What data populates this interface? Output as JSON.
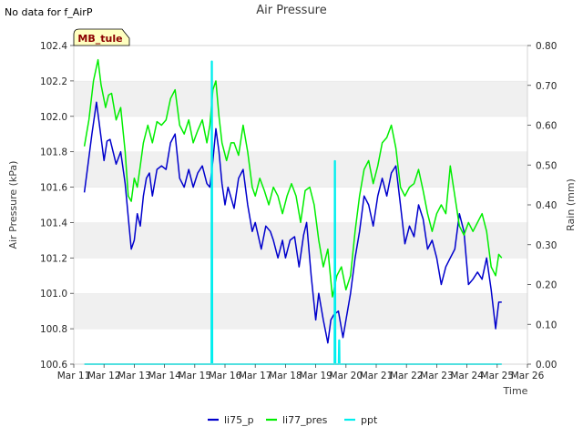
{
  "header": {
    "note": "No data for f_AirP",
    "title": "Air Pressure",
    "site_label": "MB_tule"
  },
  "chart_data": {
    "type": "line",
    "title": "Air Pressure",
    "xlabel": "Time",
    "ylabel": "Air Pressure (kPa)",
    "y2label": "Rain (mm)",
    "x_range": [
      11,
      26
    ],
    "ylim": [
      100.6,
      102.4
    ],
    "y2lim": [
      0.0,
      0.8
    ],
    "x_tick_values": [
      11,
      12,
      13,
      14,
      15,
      16,
      17,
      18,
      19,
      20,
      21,
      22,
      23,
      24,
      25,
      26
    ],
    "x_tick_labels": [
      "Mar 11",
      "Mar 12",
      "Mar 13",
      "Mar 14",
      "Mar 15",
      "Mar 16",
      "Mar 17",
      "Mar 18",
      "Mar 19",
      "Mar 20",
      "Mar 21",
      "Mar 22",
      "Mar 23",
      "Mar 24",
      "Mar 25",
      "Mar 26"
    ],
    "y_tick_values": [
      100.6,
      100.8,
      101.0,
      101.2,
      101.4,
      101.6,
      101.8,
      102.0,
      102.2,
      102.4
    ],
    "y_tick_labels": [
      "100.6",
      "100.8",
      "101.0",
      "101.2",
      "101.4",
      "101.6",
      "101.8",
      "102.0",
      "102.2",
      "102.4"
    ],
    "y2_tick_values": [
      0.0,
      0.1,
      0.2,
      0.3,
      0.4,
      0.5,
      0.6,
      0.7,
      0.8
    ],
    "y2_tick_labels": [
      "0.00",
      "0.10",
      "0.20",
      "0.30",
      "0.40",
      "0.50",
      "0.60",
      "0.70",
      "0.80"
    ],
    "grid": "horizontal bands",
    "legend_position": "bottom-center",
    "series": [
      {
        "name": "li75_p",
        "color": "#0000cc",
        "axis": "left",
        "x": [
          11.35,
          11.45,
          11.6,
          11.75,
          11.85,
          12.0,
          12.1,
          12.2,
          12.4,
          12.55,
          12.7,
          12.8,
          12.9,
          13.0,
          13.1,
          13.2,
          13.3,
          13.4,
          13.5,
          13.6,
          13.75,
          13.9,
          14.05,
          14.2,
          14.35,
          14.5,
          14.65,
          14.8,
          14.95,
          15.1,
          15.25,
          15.4,
          15.5,
          15.6,
          15.7,
          15.8,
          15.9,
          16.0,
          16.1,
          16.3,
          16.45,
          16.6,
          16.75,
          16.9,
          17.0,
          17.2,
          17.35,
          17.5,
          17.6,
          17.75,
          17.9,
          18.0,
          18.15,
          18.3,
          18.45,
          18.6,
          18.7,
          18.85,
          19.0,
          19.1,
          19.25,
          19.4,
          19.5,
          19.6,
          19.75,
          19.9,
          20.0,
          20.15,
          20.3,
          20.45,
          20.6,
          20.75,
          20.9,
          21.05,
          21.2,
          21.35,
          21.5,
          21.65,
          21.8,
          21.95,
          22.1,
          22.25,
          22.4,
          22.55,
          22.7,
          22.85,
          23.0,
          23.15,
          23.3,
          23.45,
          23.6,
          23.75,
          23.9,
          24.05,
          24.2,
          24.35,
          24.5,
          24.65,
          24.8,
          24.95,
          25.05,
          25.15
        ],
        "y": [
          101.57,
          101.7,
          101.9,
          102.08,
          101.95,
          101.75,
          101.86,
          101.87,
          101.73,
          101.8,
          101.62,
          101.43,
          101.25,
          101.3,
          101.45,
          101.38,
          101.55,
          101.65,
          101.68,
          101.55,
          101.7,
          101.72,
          101.7,
          101.85,
          101.9,
          101.65,
          101.6,
          101.7,
          101.6,
          101.68,
          101.72,
          101.62,
          101.6,
          101.75,
          101.93,
          101.8,
          101.62,
          101.5,
          101.6,
          101.48,
          101.65,
          101.7,
          101.5,
          101.35,
          101.4,
          101.25,
          101.38,
          101.35,
          101.3,
          101.2,
          101.3,
          101.2,
          101.3,
          101.32,
          101.15,
          101.33,
          101.4,
          101.1,
          100.85,
          101.0,
          100.85,
          100.72,
          100.85,
          100.88,
          100.9,
          100.75,
          100.85,
          101.0,
          101.2,
          101.35,
          101.55,
          101.5,
          101.38,
          101.55,
          101.65,
          101.55,
          101.68,
          101.72,
          101.5,
          101.28,
          101.38,
          101.32,
          101.5,
          101.42,
          101.25,
          101.3,
          101.2,
          101.05,
          101.15,
          101.2,
          101.25,
          101.45,
          101.35,
          101.05,
          101.08,
          101.12,
          101.08,
          101.2,
          101.02,
          100.8,
          100.95,
          100.95
        ]
      },
      {
        "name": "li77_pres",
        "color": "#00ee00",
        "axis": "left",
        "x": [
          11.35,
          11.5,
          11.65,
          11.8,
          11.9,
          12.05,
          12.15,
          12.25,
          12.4,
          12.55,
          12.7,
          12.8,
          12.9,
          13.0,
          13.1,
          13.2,
          13.3,
          13.45,
          13.6,
          13.75,
          13.9,
          14.05,
          14.2,
          14.35,
          14.5,
          14.65,
          14.8,
          14.95,
          15.1,
          15.25,
          15.4,
          15.5,
          15.6,
          15.7,
          15.8,
          15.9,
          16.05,
          16.2,
          16.3,
          16.45,
          16.6,
          16.75,
          16.9,
          17.0,
          17.15,
          17.3,
          17.45,
          17.6,
          17.75,
          17.9,
          18.05,
          18.2,
          18.35,
          18.5,
          18.65,
          18.8,
          18.95,
          19.1,
          19.25,
          19.4,
          19.55,
          19.7,
          19.85,
          20.0,
          20.15,
          20.3,
          20.45,
          20.6,
          20.75,
          20.9,
          21.05,
          21.2,
          21.35,
          21.5,
          21.65,
          21.8,
          21.95,
          22.1,
          22.25,
          22.4,
          22.55,
          22.7,
          22.85,
          23.0,
          23.15,
          23.3,
          23.45,
          23.6,
          23.75,
          23.9,
          24.05,
          24.2,
          24.35,
          24.5,
          24.65,
          24.8,
          24.95,
          25.05,
          25.15
        ],
        "y": [
          101.83,
          101.98,
          102.2,
          102.32,
          102.18,
          102.05,
          102.12,
          102.13,
          101.98,
          102.05,
          101.8,
          101.55,
          101.52,
          101.65,
          101.6,
          101.72,
          101.85,
          101.95,
          101.85,
          101.97,
          101.95,
          101.98,
          102.1,
          102.15,
          101.95,
          101.9,
          101.98,
          101.85,
          101.92,
          101.98,
          101.85,
          101.95,
          102.15,
          102.2,
          102.0,
          101.85,
          101.75,
          101.85,
          101.85,
          101.78,
          101.95,
          101.8,
          101.6,
          101.55,
          101.65,
          101.58,
          101.5,
          101.6,
          101.55,
          101.45,
          101.55,
          101.62,
          101.55,
          101.4,
          101.58,
          101.6,
          101.5,
          101.3,
          101.15,
          101.25,
          100.98,
          101.1,
          101.15,
          101.02,
          101.1,
          101.35,
          101.55,
          101.7,
          101.75,
          101.62,
          101.72,
          101.85,
          101.88,
          101.95,
          101.82,
          101.6,
          101.55,
          101.6,
          101.62,
          101.7,
          101.58,
          101.45,
          101.35,
          101.45,
          101.5,
          101.45,
          101.72,
          101.55,
          101.38,
          101.33,
          101.4,
          101.35,
          101.4,
          101.45,
          101.35,
          101.15,
          101.1,
          101.22,
          101.2
        ]
      },
      {
        "name": "ppt",
        "color": "#00eeee",
        "axis": "right",
        "x": [
          11.35,
          15.55,
          15.56,
          15.57,
          15.58,
          15.59,
          19.62,
          19.63,
          19.64,
          19.65,
          19.76,
          19.77,
          19.78,
          19.79,
          25.15
        ],
        "y": [
          0.0,
          0.0,
          0.76,
          0.76,
          0.0,
          0.0,
          0.0,
          0.51,
          0.51,
          0.0,
          0.0,
          0.06,
          0.06,
          0.0,
          0.0
        ]
      }
    ]
  }
}
